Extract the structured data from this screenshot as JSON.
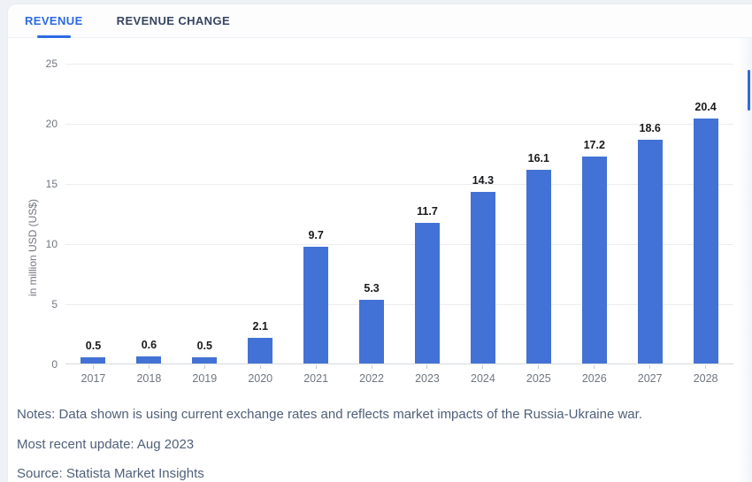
{
  "tabs": [
    {
      "label": "REVENUE",
      "active": true
    },
    {
      "label": "REVENUE CHANGE",
      "active": false
    }
  ],
  "colors": {
    "accent": "#2b6ae3",
    "bar": "#4272d5",
    "gridline": "#ededf1",
    "axis_text": "#71767f",
    "footer_text": "#50607a"
  },
  "chart_data": {
    "type": "bar",
    "categories": [
      "2017",
      "2018",
      "2019",
      "2020",
      "2021",
      "2022",
      "2023",
      "2024",
      "2025",
      "2026",
      "2027",
      "2028"
    ],
    "values": [
      0.5,
      0.6,
      0.5,
      2.1,
      9.7,
      5.3,
      11.7,
      14.3,
      16.1,
      17.2,
      18.6,
      20.4
    ],
    "title": "",
    "xlabel": "",
    "ylabel": "in million USD (US$)",
    "ylim": [
      0,
      25
    ],
    "yticks": [
      0,
      5,
      10,
      15,
      20,
      25
    ],
    "grid": true,
    "legend_position": "none",
    "value_labels": true
  },
  "footer": {
    "notes": "Notes: Data shown is using current exchange rates and reflects market impacts of the Russia-Ukraine war.",
    "update": "Most recent update: Aug 2023",
    "source": "Source: Statista Market Insights"
  }
}
